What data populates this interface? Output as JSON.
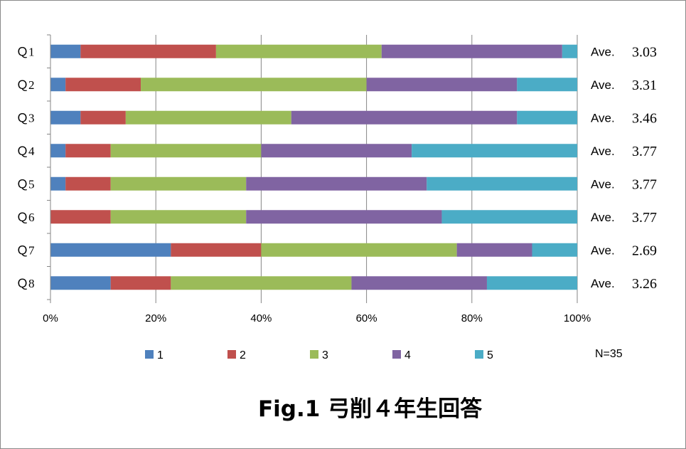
{
  "chart_data": {
    "type": "bar",
    "orientation": "horizontal",
    "stacked": "percent",
    "categories": [
      "Ｑ1",
      "Ｑ2",
      "Ｑ3",
      "Ｑ4",
      "Ｑ5",
      "Ｑ6",
      "Ｑ7",
      "Ｑ8"
    ],
    "series": [
      {
        "name": "1",
        "color": "#4f81bd",
        "values": [
          2,
          1,
          2,
          1,
          1,
          0,
          8,
          4
        ]
      },
      {
        "name": "2",
        "color": "#c0504d",
        "values": [
          9,
          5,
          3,
          3,
          3,
          4,
          6,
          4
        ]
      },
      {
        "name": "3",
        "color": "#9bbb59",
        "values": [
          11,
          15,
          11,
          10,
          9,
          9,
          13,
          12
        ]
      },
      {
        "name": "4",
        "color": "#8064a2",
        "values": [
          12,
          10,
          15,
          10,
          12,
          13,
          5,
          9
        ]
      },
      {
        "name": "5",
        "color": "#4bacc6",
        "values": [
          1,
          4,
          4,
          11,
          10,
          9,
          3,
          6
        ]
      }
    ],
    "x_ticks": [
      "0%",
      "20%",
      "40%",
      "60%",
      "80%",
      "100%"
    ],
    "xlim": [
      0,
      100
    ],
    "grid": true,
    "legend_position": "bottom",
    "averages": {
      "label": "Ave.",
      "values": [
        "3.03",
        "3.31",
        "3.46",
        "3.77",
        "3.77",
        "3.77",
        "2.69",
        "3.26"
      ]
    },
    "n_label": "N=35",
    "title": "Fig.1 弓削４年生回答"
  }
}
